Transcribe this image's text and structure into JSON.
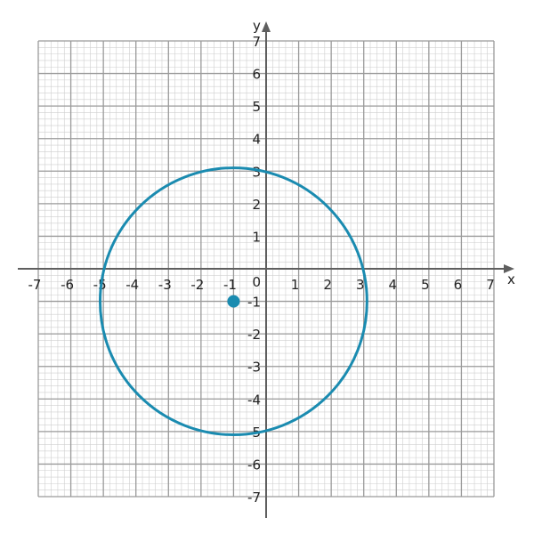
{
  "chart_data": {
    "type": "scatter",
    "title": "",
    "xlabel": "x",
    "ylabel": "y",
    "xlim": [
      -7,
      7
    ],
    "ylim": [
      -7,
      7
    ],
    "grid": true,
    "minor_divisions": 5,
    "x_ticks": [
      "-7",
      "-6",
      "-5",
      "-4",
      "-3",
      "-2",
      "-1",
      "0",
      "1",
      "2",
      "3",
      "4",
      "5",
      "6",
      "7"
    ],
    "y_ticks": [
      "-7",
      "-6",
      "-5",
      "-4",
      "-3",
      "-2",
      "-1",
      "1",
      "2",
      "3",
      "4",
      "5",
      "6",
      "7"
    ],
    "circle": {
      "center": [
        -1,
        -1
      ],
      "radius": 4.1
    },
    "points": [
      {
        "x": -1,
        "y": -1
      }
    ],
    "colors": {
      "curve": "#1a8bb0",
      "point": "#1a8bb0",
      "axis": "#5f5f5f"
    }
  }
}
